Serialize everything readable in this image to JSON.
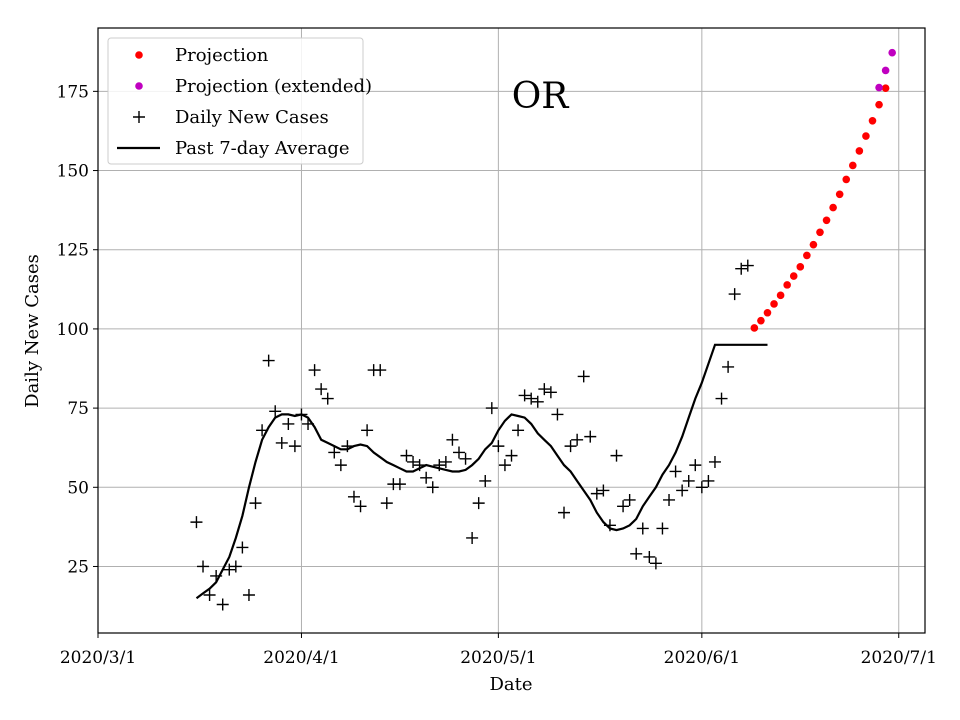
{
  "chart_data": {
    "type": "scatter",
    "title": "OR",
    "xlabel": "Date",
    "ylabel": "Daily New Cases",
    "x_ticks": [
      "2020/3/1",
      "2020/4/1",
      "2020/5/1",
      "2020/6/1",
      "2020/7/1"
    ],
    "x_range_days": [
      0,
      126
    ],
    "x_origin_date": "2020-03-01",
    "y_ticks": [
      25,
      50,
      75,
      100,
      125,
      150,
      175
    ],
    "ylim": [
      4,
      195
    ],
    "grid": true,
    "legend_position": "top-left",
    "series": [
      {
        "name": "Projection",
        "marker": "dot",
        "color": "#ff0000",
        "x": [
          100,
          101,
          102,
          103,
          104,
          105,
          106,
          107,
          108,
          109,
          110,
          111,
          112,
          113,
          114,
          115,
          116,
          117,
          118,
          119,
          120
        ],
        "y": [
          100.3,
          102.6,
          105.1,
          107.9,
          110.6,
          113.9,
          116.7,
          119.6,
          123.2,
          126.6,
          130.5,
          134.3,
          138.3,
          142.5,
          147.2,
          151.6,
          156.2,
          160.9,
          165.7,
          170.8,
          176.0
        ]
      },
      {
        "name": "Projection (extended)",
        "marker": "dot",
        "color": "#c000c0",
        "x": [
          119,
          120,
          121
        ],
        "y": [
          176.2,
          181.6,
          187.2
        ]
      },
      {
        "name": "Daily New Cases",
        "marker": "plus",
        "color": "#000000",
        "x": [
          15,
          16,
          17,
          18,
          19,
          20,
          21,
          22,
          23,
          24,
          25,
          26,
          27,
          28,
          29,
          30,
          31,
          32,
          33,
          34,
          35,
          36,
          37,
          38,
          39,
          40,
          41,
          42,
          43,
          44,
          45,
          46,
          47,
          48,
          49,
          50,
          51,
          52,
          53,
          54,
          55,
          56,
          57,
          58,
          59,
          60,
          61,
          62,
          63,
          64,
          65,
          66,
          67,
          68,
          69,
          70,
          71,
          72,
          73,
          74,
          75,
          76,
          77,
          78,
          79,
          80,
          81,
          82,
          83,
          84,
          85,
          86,
          87,
          88,
          89,
          90,
          91,
          92,
          93,
          94,
          95,
          96,
          97,
          98,
          99
        ],
        "y": [
          39,
          25,
          16,
          22,
          13,
          24,
          25,
          31,
          16,
          45,
          68,
          90,
          74,
          64,
          70,
          63,
          73,
          70,
          87,
          81,
          78,
          61,
          57,
          63,
          47,
          44,
          68,
          87,
          87,
          45,
          51,
          51,
          60,
          58,
          57,
          53,
          50,
          57,
          58,
          65,
          61,
          59,
          34,
          45,
          52,
          75,
          63,
          57,
          60,
          68,
          79,
          78,
          77,
          81,
          80,
          73,
          42,
          63,
          65,
          85,
          66,
          48,
          49,
          38,
          60,
          44,
          46,
          29,
          37,
          28,
          26,
          37,
          46,
          55,
          49,
          52,
          57,
          50,
          52,
          58,
          78,
          88,
          111,
          119,
          120
        ]
      },
      {
        "name": "Past 7-day Average",
        "marker": "line",
        "color": "#000000",
        "x": [
          15,
          16,
          17,
          18,
          19,
          20,
          21,
          22,
          23,
          24,
          25,
          26,
          27,
          28,
          29,
          30,
          31,
          32,
          33,
          34,
          35,
          36,
          37,
          38,
          39,
          40,
          41,
          42,
          43,
          44,
          45,
          46,
          47,
          48,
          49,
          50,
          51,
          52,
          53,
          54,
          55,
          56,
          57,
          58,
          59,
          60,
          61,
          62,
          63,
          64,
          65,
          66,
          67,
          68,
          69,
          70,
          71,
          72,
          73,
          74,
          75,
          76,
          77,
          78,
          79,
          80,
          81,
          82,
          83,
          84,
          85,
          86,
          87,
          88,
          89,
          90,
          91,
          92,
          93,
          94,
          95,
          96,
          97,
          98,
          99,
          100,
          101,
          102
        ],
        "y": [
          15,
          16.5,
          18,
          20,
          24,
          28,
          34,
          41,
          50,
          58,
          65,
          69,
          72,
          73,
          73,
          72.5,
          73,
          72,
          69,
          65,
          64,
          63,
          62,
          62,
          63,
          63.5,
          63,
          61,
          59.5,
          58,
          57,
          56,
          55,
          55,
          56,
          57,
          56.5,
          56,
          55.5,
          55,
          55,
          55.5,
          57,
          59,
          62,
          64,
          68,
          71,
          73,
          72.5,
          72,
          70,
          67,
          65,
          63,
          60,
          57,
          55,
          52,
          49,
          46,
          42,
          39,
          37,
          36.5,
          37,
          38,
          40,
          44,
          47,
          50,
          54,
          57,
          61,
          66,
          72,
          78,
          83,
          89,
          95,
          95,
          95,
          95,
          95,
          95,
          95,
          95,
          95
        ]
      }
    ]
  }
}
